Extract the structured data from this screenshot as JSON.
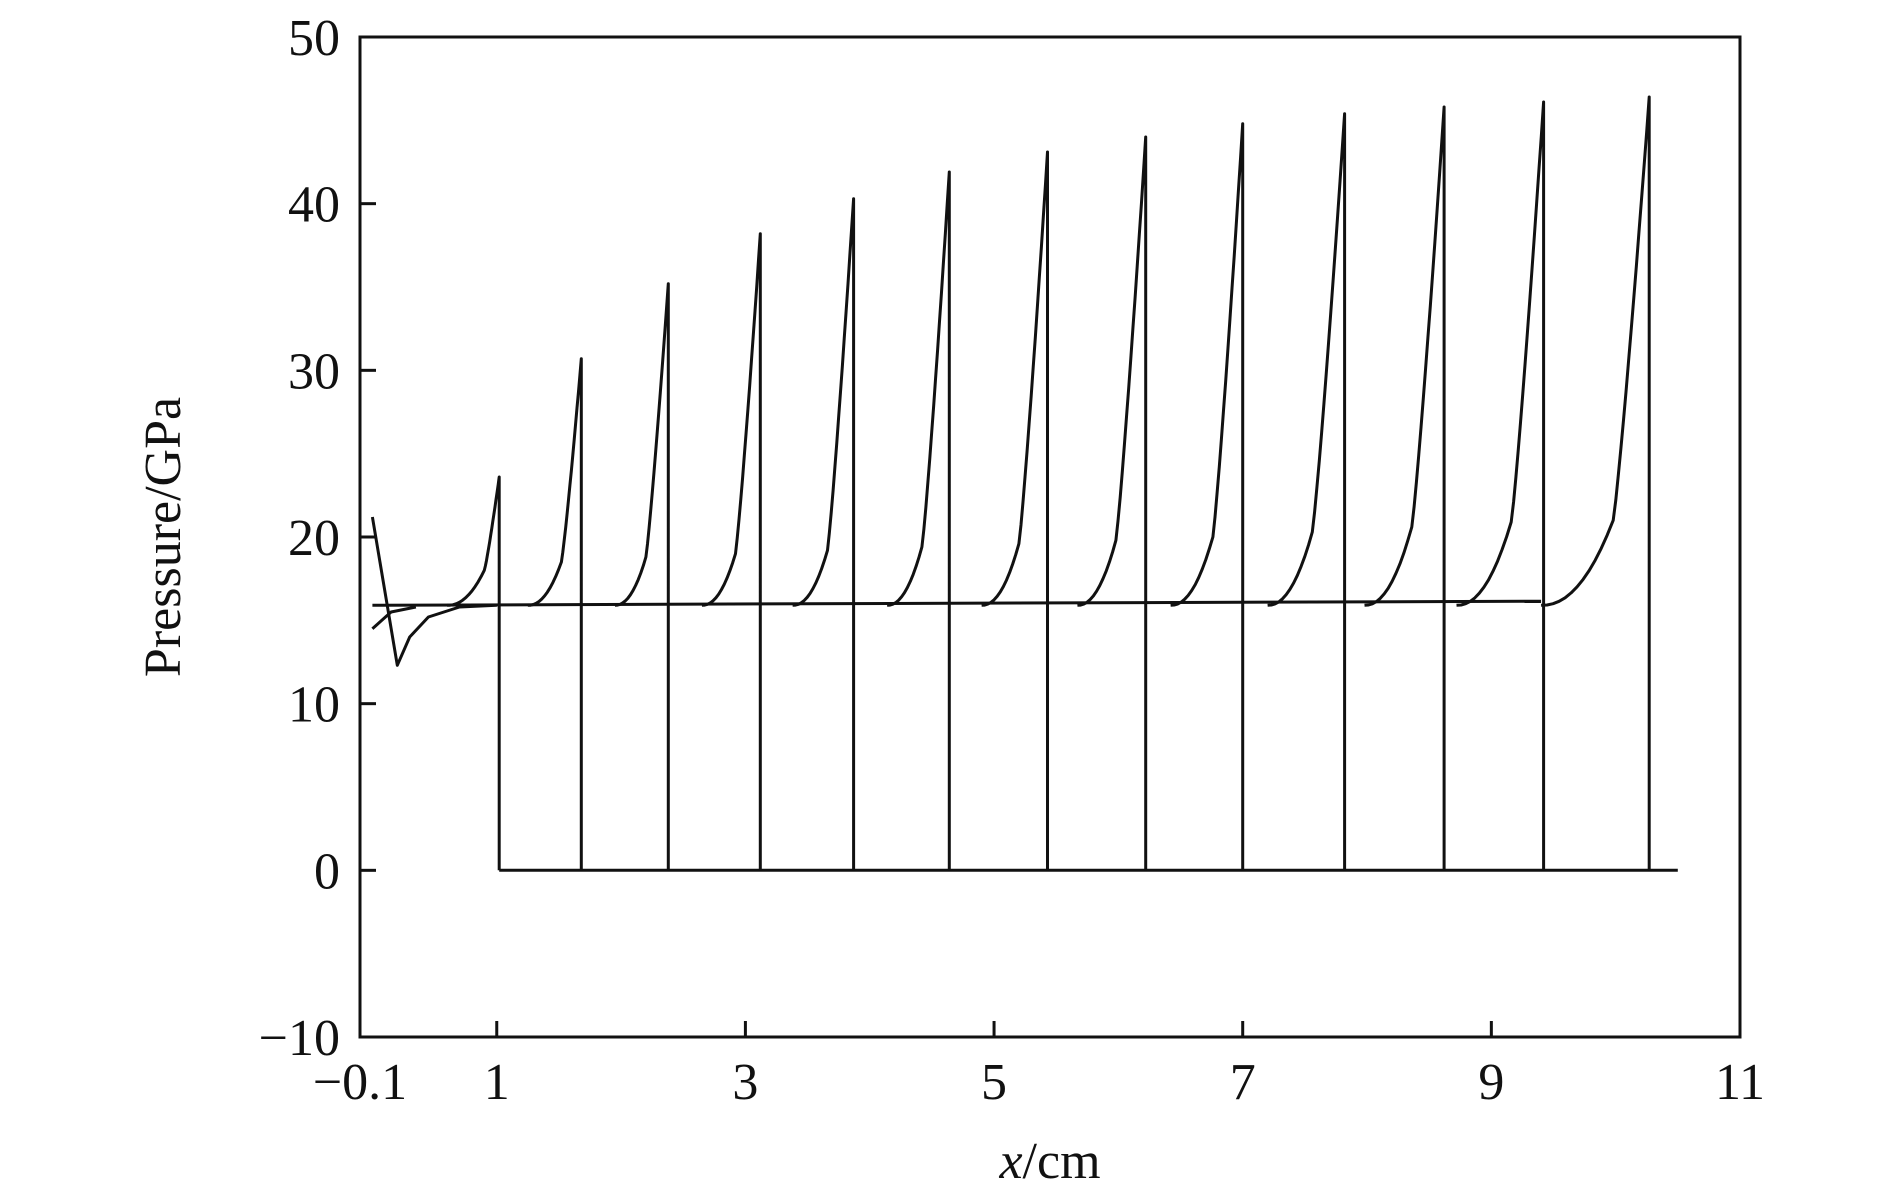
{
  "chart_data": {
    "type": "line",
    "xlabel_var": "x",
    "xlabel_unit": "/cm",
    "ylabel": "Pressure/GPa",
    "xlim": [
      -0.1,
      11
    ],
    "ylim": [
      -10,
      50
    ],
    "xticks": [
      -0.1,
      1,
      3,
      5,
      7,
      9,
      11
    ],
    "xtick_labels": [
      "−0.1",
      "1",
      "3",
      "5",
      "7",
      "9",
      "11"
    ],
    "yticks": [
      -10,
      0,
      10,
      20,
      30,
      40,
      50
    ],
    "ytick_labels": [
      "−10",
      "0",
      "10",
      "20",
      "30",
      "40",
      "50"
    ],
    "baseline_pressure": 15.9,
    "front_end_x": 10.5,
    "pulses": [
      {
        "x_front": 1.02,
        "peak": 23.6,
        "knee_x": 0.9,
        "knee_p": 18.0,
        "foot_x": 0.6
      },
      {
        "x_front": 1.68,
        "peak": 30.7,
        "knee_x": 1.52,
        "knee_p": 18.5,
        "foot_x": 1.25
      },
      {
        "x_front": 2.38,
        "peak": 35.2,
        "knee_x": 2.2,
        "knee_p": 18.8,
        "foot_x": 1.95
      },
      {
        "x_front": 3.12,
        "peak": 38.2,
        "knee_x": 2.92,
        "knee_p": 19.0,
        "foot_x": 2.65
      },
      {
        "x_front": 3.87,
        "peak": 40.3,
        "knee_x": 3.66,
        "knee_p": 19.2,
        "foot_x": 3.38
      },
      {
        "x_front": 4.64,
        "peak": 41.9,
        "knee_x": 4.42,
        "knee_p": 19.4,
        "foot_x": 4.14
      },
      {
        "x_front": 5.43,
        "peak": 43.1,
        "knee_x": 5.2,
        "knee_p": 19.6,
        "foot_x": 4.9
      },
      {
        "x_front": 6.22,
        "peak": 44.0,
        "knee_x": 5.98,
        "knee_p": 19.8,
        "foot_x": 5.67
      },
      {
        "x_front": 7.0,
        "peak": 44.8,
        "knee_x": 6.76,
        "knee_p": 20.0,
        "foot_x": 6.42
      },
      {
        "x_front": 7.82,
        "peak": 45.4,
        "knee_x": 7.56,
        "knee_p": 20.3,
        "foot_x": 7.2
      },
      {
        "x_front": 8.62,
        "peak": 45.8,
        "knee_x": 8.36,
        "knee_p": 20.6,
        "foot_x": 7.98
      },
      {
        "x_front": 9.42,
        "peak": 46.1,
        "knee_x": 9.16,
        "knee_p": 20.9,
        "foot_x": 8.72
      },
      {
        "x_front": 10.27,
        "peak": 46.4,
        "knee_x": 9.98,
        "knee_p": 21.0,
        "foot_x": 9.4
      }
    ],
    "initial_transient": [
      [
        0.0,
        21.2
      ],
      [
        0.2,
        12.3
      ],
      [
        0.3,
        14.0
      ],
      [
        0.45,
        15.2
      ],
      [
        0.7,
        15.8
      ],
      [
        1.0,
        15.9
      ]
    ],
    "initial_transient_2": [
      [
        0.0,
        14.5
      ],
      [
        0.15,
        15.5
      ],
      [
        0.35,
        15.8
      ]
    ],
    "grid": false,
    "legend": "none"
  }
}
